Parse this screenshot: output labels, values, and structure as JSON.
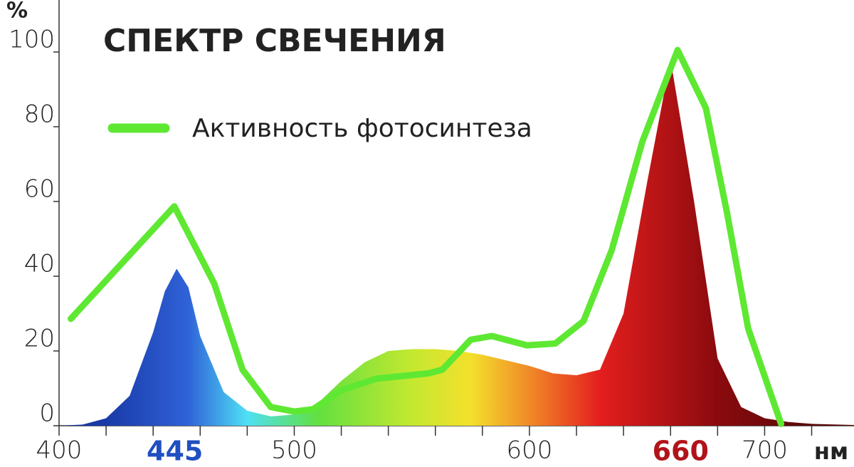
{
  "chart_data": {
    "type": "spectrum",
    "title": "СПЕКТР СВЕЧЕНИЯ",
    "y_unit": "%",
    "x_unit": "нм",
    "xlim": [
      400,
      738
    ],
    "ylim": [
      0,
      110
    ],
    "xticks": [
      400,
      500,
      600,
      700
    ],
    "xminor_ticks": [
      400,
      420,
      440,
      460,
      480,
      500,
      520,
      540,
      560,
      580,
      600,
      620,
      640,
      660,
      680,
      700,
      720
    ],
    "yticks": [
      0,
      20,
      40,
      60,
      80,
      100
    ],
    "peaks": [
      445,
      660
    ],
    "peak_colors": [
      "#1f4fc0",
      "#b0141a"
    ],
    "spectrum": {
      "x": [
        400,
        410,
        420,
        430,
        440,
        445,
        450,
        455,
        460,
        470,
        480,
        490,
        500,
        510,
        520,
        530,
        540,
        550,
        560,
        570,
        580,
        590,
        600,
        610,
        620,
        630,
        640,
        650,
        660,
        670,
        680,
        690,
        700,
        710,
        720,
        738
      ],
      "values": [
        0,
        0.3,
        2,
        8,
        25,
        36,
        42,
        37,
        24,
        9,
        4,
        2.5,
        3,
        6,
        12,
        17,
        20,
        20.5,
        20.5,
        20,
        19,
        17.5,
        16,
        14,
        13.5,
        15,
        30,
        65,
        98,
        60,
        18,
        5,
        2,
        1,
        0.5,
        0.2
      ],
      "gradient": [
        {
          "at": 420,
          "color": "#1a3aa8"
        },
        {
          "at": 455,
          "color": "#2f62d8"
        },
        {
          "at": 480,
          "color": "#4fe0f5"
        },
        {
          "at": 510,
          "color": "#62e040"
        },
        {
          "at": 550,
          "color": "#c4e830"
        },
        {
          "at": 575,
          "color": "#f4e02c"
        },
        {
          "at": 600,
          "color": "#f08a28"
        },
        {
          "at": 630,
          "color": "#e41e1e"
        },
        {
          "at": 680,
          "color": "#8a0a0e"
        },
        {
          "at": 720,
          "color": "#5a0808"
        }
      ]
    },
    "series": [
      {
        "name": "Активность фотосинтеза",
        "color": "#5ee832",
        "x": [
          405,
          449,
          466,
          478,
          490,
          500,
          508,
          520,
          535,
          557,
          563,
          575,
          584,
          599,
          611,
          623,
          635,
          648,
          663,
          675,
          684,
          693,
          707
        ],
        "values": [
          28.6,
          58.7,
          38,
          15,
          5,
          3.8,
          4.4,
          9.5,
          12.6,
          14,
          15,
          23,
          24,
          21.5,
          22,
          28,
          47,
          76,
          100.5,
          85,
          57,
          26,
          0.5
        ]
      }
    ]
  }
}
